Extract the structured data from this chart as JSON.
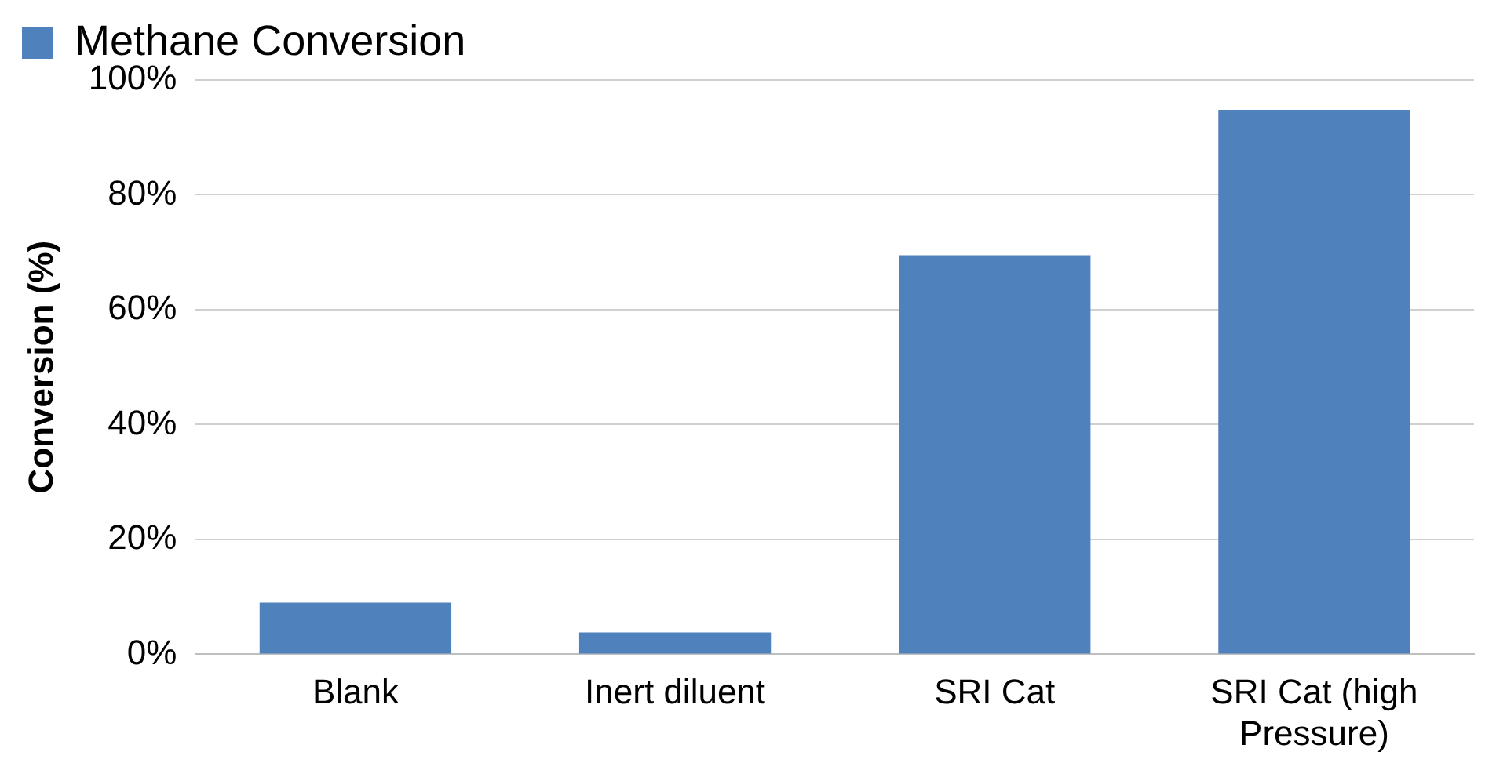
{
  "chart_data": {
    "type": "bar",
    "ylabel": "Conversion (%)",
    "categories": [
      "Blank",
      "Inert diluent",
      "SRI Cat",
      "SRI Cat (high Pressure)"
    ],
    "series": [
      {
        "name": "Methane Conversion",
        "color": "#4f81bd",
        "values": [
          9.0,
          3.8,
          69.5,
          94.8
        ]
      }
    ],
    "ylim": [
      0,
      100
    ],
    "yticks": [
      {
        "value": 0,
        "label": "0%"
      },
      {
        "value": 20,
        "label": "20%"
      },
      {
        "value": 40,
        "label": "40%"
      },
      {
        "value": 60,
        "label": "60%"
      },
      {
        "value": 80,
        "label": "80%"
      },
      {
        "value": 100,
        "label": "100%"
      }
    ],
    "grid": "y",
    "legend": "top left"
  }
}
